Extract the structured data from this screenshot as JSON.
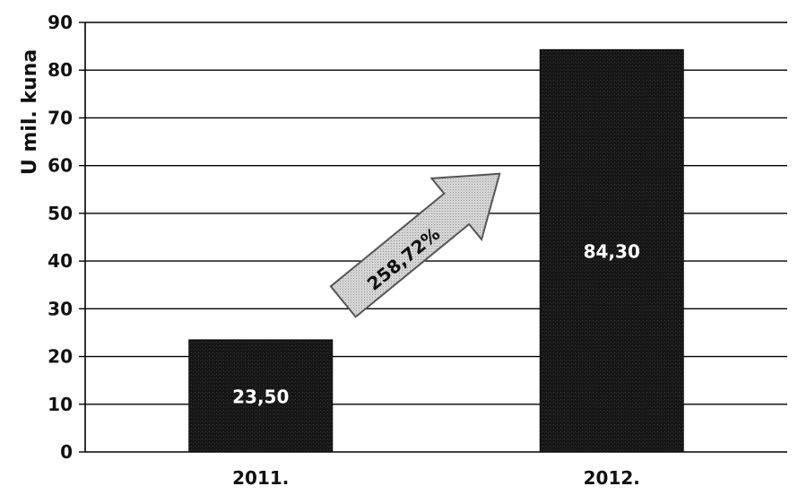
{
  "chart_data": {
    "type": "bar",
    "categories": [
      "2011.",
      "2012."
    ],
    "values": [
      23.5,
      84.3
    ],
    "value_labels": [
      "23,50",
      "84,30"
    ],
    "ylabel": "U mil. kuna",
    "ylim": [
      0,
      90
    ],
    "yticks": [
      0,
      10,
      20,
      30,
      40,
      50,
      60,
      70,
      80,
      90
    ],
    "grid": true,
    "legend": "none",
    "annotation": {
      "text": "258,72%",
      "shape": "arrow",
      "from_category": "2011.",
      "to_category": "2012."
    },
    "colors": {
      "bar": "#141414",
      "bar_label": "#ffffff",
      "arrow_fill": "#c8c8c8",
      "gridline": "#000000",
      "text": "#111111"
    }
  }
}
